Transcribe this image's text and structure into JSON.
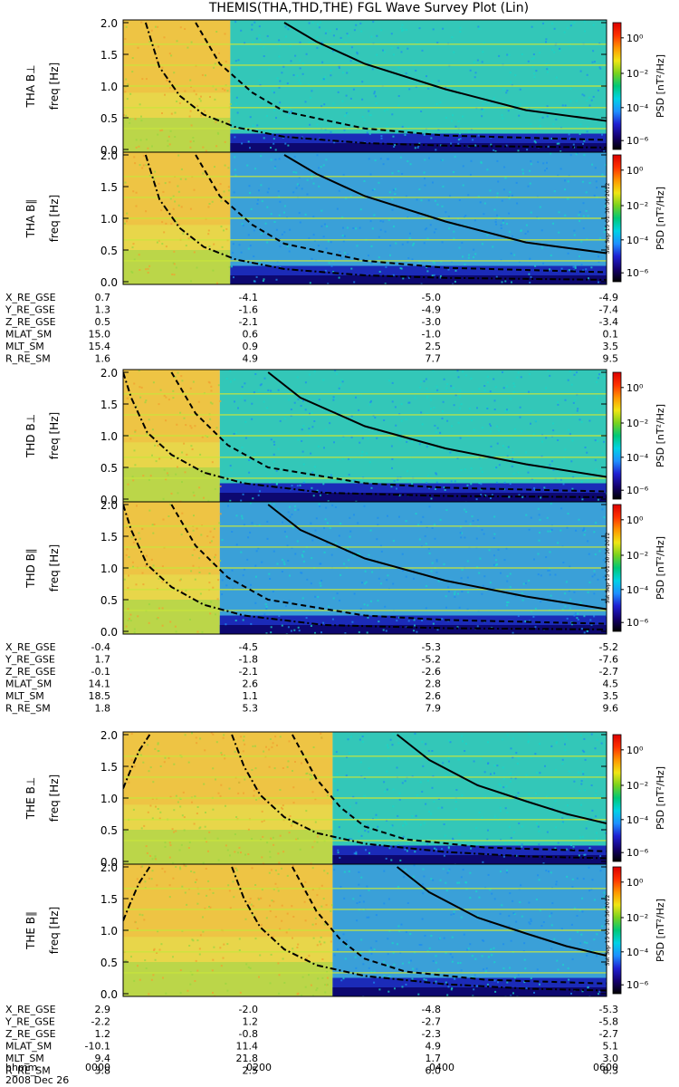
{
  "title": "THEMIS(THA,THD,THE) FGL Wave Survey Plot (Lin)",
  "date_label": "2008 Dec 26",
  "timestamp_label": "Sat Sep 15 01:30:36 2012",
  "colorbar": {
    "label": "PSD [nT²/Hz]",
    "ticks": [
      "10⁰",
      "10⁻²",
      "10⁻⁴",
      "10⁻⁶"
    ],
    "stops": [
      "#000000",
      "#14006e",
      "#1f1fd2",
      "#1e90ff",
      "#00d2e6",
      "#00c878",
      "#78d21e",
      "#f0e614",
      "#ff9600",
      "#ff3200",
      "#dc0000"
    ]
  },
  "freq_axis": {
    "label": "freq [Hz]",
    "ticks": [
      "0.0",
      "0.5",
      "1.0",
      "1.5",
      "2.0"
    ],
    "range": [
      0,
      2.0
    ]
  },
  "ephem_labels": [
    "X_RE_GSE",
    "Y_RE_GSE",
    "Z_RE_GSE",
    "MLAT_SM",
    "MLT_SM",
    "R_RE_SM"
  ],
  "chart_data": [
    {
      "type": "heatmap",
      "probe": "THA",
      "panels": [
        {
          "ylabel": "THA B⊥",
          "band": "perp"
        },
        {
          "ylabel": "THA B∥",
          "band": "par"
        }
      ],
      "x_hours": [
        0,
        6
      ],
      "ylim": [
        0,
        2.0
      ],
      "bright_end_hour": 1.33,
      "harmonic_lines_hz": [
        0.33,
        0.66,
        1.0,
        1.33,
        1.66
      ],
      "solid_curve_hz": {
        "hours": [
          2.0,
          2.4,
          3.0,
          4.0,
          5.0,
          6.0
        ],
        "values": [
          2.0,
          1.7,
          1.35,
          0.95,
          0.62,
          0.45
        ]
      },
      "dashed_curve_hz": {
        "hours": [
          0.9,
          1.2,
          1.6,
          2.0,
          3.0,
          4.0,
          6.0
        ],
        "values": [
          2.0,
          1.35,
          0.9,
          0.6,
          0.33,
          0.22,
          0.15
        ]
      },
      "dashdot_curve_hz": {
        "hours": [
          0.28,
          0.45,
          0.7,
          1.0,
          1.4,
          2.0,
          3.0,
          4.0,
          6.0
        ],
        "values": [
          2.0,
          1.3,
          0.85,
          0.55,
          0.35,
          0.2,
          0.1,
          0.06,
          0.03
        ]
      },
      "ephemeris": [
        [
          "0.7",
          "-4.1",
          "-5.0",
          "-4.9"
        ],
        [
          "1.3",
          "-1.6",
          "-4.9",
          "-7.4"
        ],
        [
          "0.5",
          "-2.1",
          "-3.0",
          "-3.4"
        ],
        [
          "15.0",
          "0.6",
          "-1.0",
          "0.1"
        ],
        [
          "15.4",
          "0.9",
          "2.5",
          "3.5"
        ],
        [
          "1.6",
          "4.9",
          "7.7",
          "9.5"
        ]
      ]
    },
    {
      "type": "heatmap",
      "probe": "THD",
      "panels": [
        {
          "ylabel": "THD B⊥",
          "band": "perp"
        },
        {
          "ylabel": "THD B∥",
          "band": "par"
        }
      ],
      "x_hours": [
        0,
        6
      ],
      "ylim": [
        0,
        2.0
      ],
      "bright_end_hour": 1.2,
      "harmonic_lines_hz": [
        0.33,
        0.66,
        1.0,
        1.33,
        1.66
      ],
      "solid_curve_hz": {
        "hours": [
          1.8,
          2.2,
          3.0,
          4.0,
          5.0,
          6.0
        ],
        "values": [
          2.0,
          1.6,
          1.15,
          0.8,
          0.55,
          0.35
        ]
      },
      "dashed_curve_hz": {
        "hours": [
          0.6,
          0.9,
          1.3,
          1.8,
          3.0,
          4.0,
          6.0
        ],
        "values": [
          2.0,
          1.35,
          0.85,
          0.5,
          0.25,
          0.18,
          0.12
        ]
      },
      "dashdot_curve_hz": {
        "hours": [
          0.0,
          0.1,
          0.3,
          0.6,
          1.0,
          1.5,
          2.5,
          4.0,
          6.0
        ],
        "values": [
          2.0,
          1.6,
          1.05,
          0.7,
          0.42,
          0.25,
          0.1,
          0.05,
          0.03
        ]
      },
      "ephemeris": [
        [
          "-0.4",
          "-4.5",
          "-5.3",
          "-5.2"
        ],
        [
          "1.7",
          "-1.8",
          "-5.2",
          "-7.6"
        ],
        [
          "-0.1",
          "-2.1",
          "-2.6",
          "-2.7"
        ],
        [
          "14.1",
          "2.6",
          "2.8",
          "4.5"
        ],
        [
          "18.5",
          "1.1",
          "2.6",
          "3.5"
        ],
        [
          "1.8",
          "5.3",
          "7.9",
          "9.6"
        ]
      ]
    },
    {
      "type": "heatmap",
      "probe": "THE",
      "panels": [
        {
          "ylabel": "THE B⊥",
          "band": "perp"
        },
        {
          "ylabel": "THE B∥",
          "band": "par"
        }
      ],
      "x_hours": [
        0,
        6
      ],
      "ylim": [
        0,
        2.0
      ],
      "bright_end_hour": 2.6,
      "harmonic_lines_hz": [
        0.33,
        0.66,
        1.0,
        1.33,
        1.66
      ],
      "solid_curve_hz": {
        "hours": [
          3.4,
          3.8,
          4.4,
          5.0,
          5.5,
          6.0
        ],
        "values": [
          2.0,
          1.6,
          1.2,
          0.95,
          0.75,
          0.6
        ]
      },
      "dashed_curve_hz": {
        "hours": [
          2.1,
          2.4,
          2.7,
          3.0,
          3.5,
          4.5,
          6.0
        ],
        "values": [
          2.0,
          1.3,
          0.85,
          0.55,
          0.35,
          0.22,
          0.16
        ]
      },
      "dashdot_curve_hz": {
        "hours": [
          1.35,
          1.5,
          1.7,
          2.0,
          2.4,
          3.0,
          4.0,
          5.0,
          6.0
        ],
        "values": [
          2.0,
          1.5,
          1.05,
          0.7,
          0.45,
          0.28,
          0.15,
          0.08,
          0.05
        ]
      },
      "dashdot_left_hz": {
        "hours": [
          0.0,
          0.08,
          0.2,
          0.33
        ],
        "values": [
          1.15,
          1.4,
          1.75,
          2.0
        ]
      },
      "ephemeris": [
        [
          "2.9",
          "-2.0",
          "-4.8",
          "-5.3"
        ],
        [
          "-2.2",
          "1.2",
          "-2.7",
          "-5.8"
        ],
        [
          "1.2",
          "-0.8",
          "-2.3",
          "-2.7"
        ],
        [
          "-10.1",
          "11.4",
          "4.9",
          "5.1"
        ],
        [
          "9.4",
          "21.8",
          "1.7",
          "3.0"
        ],
        [
          "3.8",
          "2.5",
          "6.0",
          "8.3"
        ]
      ]
    }
  ],
  "time_axis": {
    "label": "hhmm",
    "ticks": [
      "0000",
      "0200",
      "0400",
      "0600"
    ]
  }
}
